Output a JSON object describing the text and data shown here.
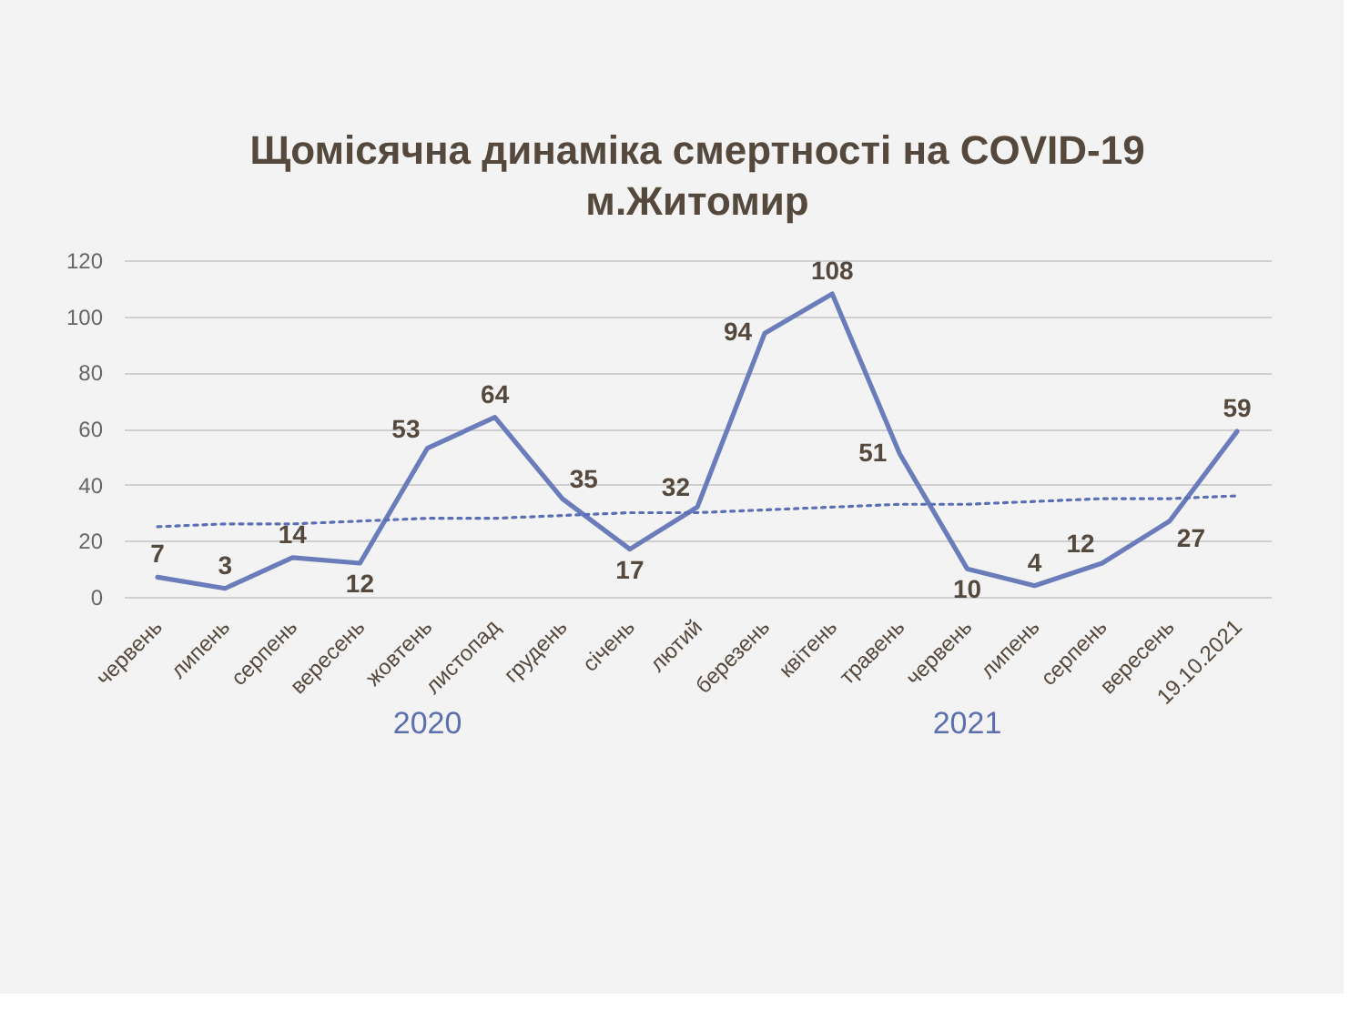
{
  "chart_data": {
    "type": "line",
    "title": "Щомісячна динаміка смертності на COVID-19",
    "subtitle": "м.Житомир",
    "categories": [
      "червень",
      "липень",
      "серпень",
      "вересень",
      "жовтень",
      "листопад",
      "грудень",
      "січень",
      "лютий",
      "березень",
      "квітень",
      "травень",
      "червень",
      "липень",
      "серпень",
      "вересень",
      "19.10.2021"
    ],
    "series": [
      {
        "color": "#6a7cba",
        "line_style": "solid",
        "values": [
          7,
          3,
          14,
          12,
          53,
          64,
          35,
          17,
          32,
          94,
          108,
          51,
          10,
          4,
          12,
          27,
          59
        ],
        "value_labels": [
          "7",
          "3",
          "14",
          "12",
          "53",
          "64",
          "35",
          "17",
          "32",
          "94",
          "108",
          "51",
          "10",
          "4",
          "12",
          "27",
          "59"
        ]
      },
      {
        "color": "#5a6eb4",
        "line_style": "dotted",
        "values": [
          25,
          26,
          26,
          27,
          28,
          28,
          29,
          30,
          30,
          31,
          32,
          33,
          33,
          34,
          35,
          35,
          36
        ]
      }
    ],
    "ylim": [
      0,
      120
    ],
    "yticks": [
      0,
      20,
      40,
      60,
      80,
      100,
      120
    ],
    "grid": "y",
    "annotations": [
      "2020",
      "2021"
    ]
  }
}
